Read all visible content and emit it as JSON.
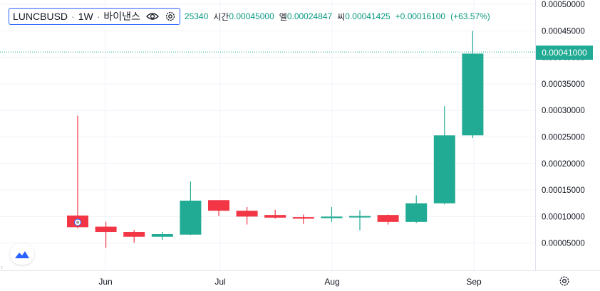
{
  "symbol": {
    "name": "LUNCBUSD",
    "interval": "1W",
    "exchange": "바이낸스"
  },
  "ohlc": {
    "open_partial": "25340",
    "high_label": "시간",
    "high": "0.00045000",
    "low_label": "엘",
    "low": "0.00024847",
    "close_label": "씨",
    "close": "0.00041425",
    "change": "+0.00016100",
    "change_pct": "(+63.57%)"
  },
  "last_price_tag": "0.00041000",
  "colors": {
    "up": "#22ab94",
    "down": "#f23645",
    "grid": "#f0f3fa",
    "accent": "#2962ff"
  },
  "icons": [
    "eye-icon",
    "gear-icon",
    "tradingview-logo-icon",
    "chevron-left-icon"
  ],
  "chart_data": {
    "type": "candlestick",
    "y_ticks": [
      "0.00005000",
      "0.00010000",
      "0.00015000",
      "0.00020000",
      "0.00025000",
      "0.00030000",
      "0.00035000",
      "0.00040000",
      "0.00045000",
      "0.00050000"
    ],
    "x_ticks": [
      "Jun",
      "Jul",
      "Aug",
      "Sep"
    ],
    "ylim": [
      0,
      0.0005
    ],
    "candles": [
      {
        "open": 0.000102,
        "high": 0.00029,
        "low": 7.8e-05,
        "close": 8e-05
      },
      {
        "open": 8.1e-05,
        "high": 9e-05,
        "low": 4.1e-05,
        "close": 7.1e-05
      },
      {
        "open": 7.1e-05,
        "high": 7.5e-05,
        "low": 5.1e-05,
        "close": 6.2e-05
      },
      {
        "open": 6.2e-05,
        "high": 7.1e-05,
        "low": 5.6e-05,
        "close": 6.7e-05
      },
      {
        "open": 6.6e-05,
        "high": 0.000166,
        "low": 6.5e-05,
        "close": 0.00013
      },
      {
        "open": 0.000131,
        "high": 0.000131,
        "low": 0.000101,
        "close": 0.000111
      },
      {
        "open": 0.000111,
        "high": 0.000118,
        "low": 8.5e-05,
        "close": 0.0001
      },
      {
        "open": 0.000103,
        "high": 0.000113,
        "low": 9.6e-05,
        "close": 9.8e-05
      },
      {
        "open": 9.9e-05,
        "high": 0.000104,
        "low": 8.6e-05,
        "close": 9.6e-05
      },
      {
        "open": 9.7e-05,
        "high": 0.000118,
        "low": 9e-05,
        "close": 0.0001
      },
      {
        "open": 0.000101,
        "high": 0.000112,
        "low": 7.4e-05,
        "close": 0.000101
      },
      {
        "open": 0.000103,
        "high": 0.000104,
        "low": 8.5e-05,
        "close": 9e-05
      },
      {
        "open": 9e-05,
        "high": 0.00014,
        "low": 8.8e-05,
        "close": 0.000125
      },
      {
        "open": 0.000125,
        "high": 0.000308,
        "low": 0.000123,
        "close": 0.000253
      },
      {
        "open": 0.000253,
        "high": 0.00045,
        "low": 0.000248,
        "close": 0.000407
      }
    ]
  }
}
